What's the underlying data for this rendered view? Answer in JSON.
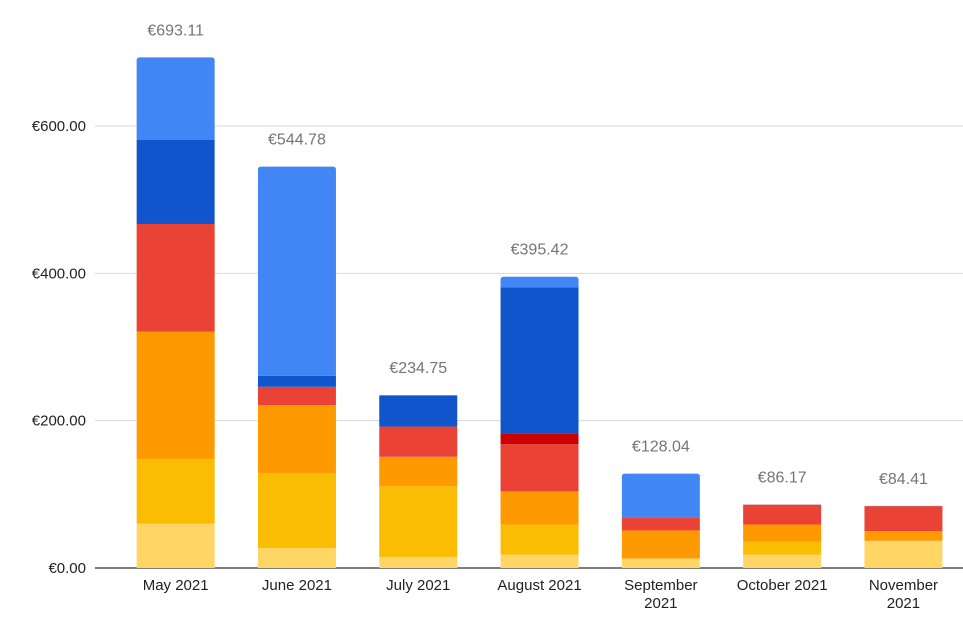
{
  "chart_data": {
    "type": "bar",
    "stacked": true,
    "title": "",
    "xlabel": "",
    "ylabel": "",
    "ylim": [
      0,
      700
    ],
    "yticks": [
      "€0.00",
      "€200.00",
      "€400.00",
      "€600.00"
    ],
    "yticks_values": [
      0,
      200,
      400,
      600
    ],
    "grid": true,
    "legend": "none",
    "categories": [
      [
        "May 2021"
      ],
      [
        "June 2021"
      ],
      [
        "July 2021"
      ],
      [
        "August 2021"
      ],
      [
        "September",
        "2021"
      ],
      [
        "October 2021"
      ],
      [
        "November",
        "2021"
      ]
    ],
    "totals_labels": [
      "€693.11",
      "€544.78",
      "€234.75",
      "€395.42",
      "€128.04",
      "€86.17",
      "€84.41"
    ],
    "series": [
      {
        "color": "#FFD666",
        "values": [
          60,
          27,
          15,
          18,
          13,
          18,
          37
        ]
      },
      {
        "color": "#FBBC04",
        "values": [
          88,
          102,
          96,
          41,
          0,
          18,
          0
        ]
      },
      {
        "color": "#FF9900",
        "values": [
          173,
          92,
          40,
          45,
          38,
          23,
          13
        ]
      },
      {
        "color": "#EA4335",
        "values": [
          146,
          25,
          41,
          64,
          18,
          27,
          34
        ]
      },
      {
        "color": "#CC0000",
        "values": [
          0,
          0,
          0,
          15,
          0,
          0,
          0
        ]
      },
      {
        "color": "#1155CC",
        "values": [
          114,
          15,
          42,
          198,
          0,
          0,
          0
        ]
      },
      {
        "color": "#4285F4",
        "values": [
          112.11,
          283.78,
          0.75,
          14.42,
          59.04,
          0.17,
          0.41
        ]
      }
    ]
  }
}
